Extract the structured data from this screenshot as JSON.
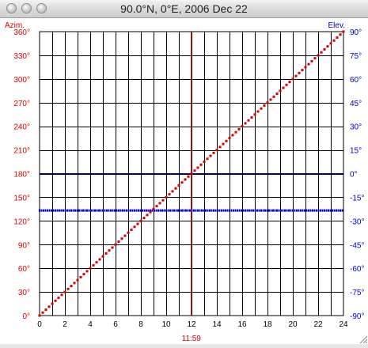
{
  "window": {
    "title": "90.0°N, 0°E, 2006 Dec 22",
    "controls": [
      "close",
      "minimize",
      "zoom"
    ]
  },
  "colors": {
    "azimuth": "#d40000",
    "elevation": "#0000c8",
    "grid": "#000000",
    "background": "#ffffff"
  },
  "chart_data": {
    "type": "scatter",
    "xlabel": "",
    "ylabel_left": "Azim.",
    "ylabel_right": "Elev.",
    "x_ticks": [
      "0",
      "2",
      "4",
      "6",
      "8",
      "10",
      "12",
      "14",
      "16",
      "18",
      "20",
      "22",
      "24"
    ],
    "y_left_ticks": [
      "0°",
      "30°",
      "60°",
      "90°",
      "120°",
      "150°",
      "180°",
      "210°",
      "240°",
      "270°",
      "300°",
      "330°",
      "360°"
    ],
    "y_right_ticks": [
      "-90°",
      "-75°",
      "-60°",
      "-45°",
      "-30°",
      "-15°",
      "0°",
      "15°",
      "30°",
      "45°",
      "60°",
      "75°",
      "90°"
    ],
    "xlim": [
      0,
      24
    ],
    "ylim_left": [
      0,
      360
    ],
    "ylim_right": [
      -90,
      90
    ],
    "grid": true,
    "marker_time": {
      "hour": 11.98,
      "label": "11:59"
    },
    "elevation_zero_line": 0,
    "series": [
      {
        "name": "Azim.",
        "axis": "left",
        "x": [
          0,
          0.5,
          1,
          1.5,
          2,
          2.5,
          3,
          3.5,
          4,
          4.5,
          5,
          5.5,
          6,
          6.5,
          7,
          7.5,
          8,
          8.5,
          9,
          9.5,
          10,
          10.5,
          11,
          11.5,
          12,
          12.5,
          13,
          13.5,
          14,
          14.5,
          15,
          15.5,
          16,
          16.5,
          17,
          17.5,
          18,
          18.5,
          19,
          19.5,
          20,
          20.5,
          21,
          21.5,
          22,
          22.5,
          23,
          23.5,
          24
        ],
        "values": [
          0,
          7.5,
          15,
          22.5,
          30,
          37.5,
          45,
          52.5,
          60,
          67.5,
          75,
          82.5,
          90,
          97.5,
          105,
          112.5,
          120,
          127.5,
          135,
          142.5,
          150,
          157.5,
          165,
          172.5,
          180,
          187.5,
          195,
          202.5,
          210,
          217.5,
          225,
          232.5,
          240,
          247.5,
          255,
          262.5,
          270,
          277.5,
          285,
          292.5,
          300,
          307.5,
          315,
          322.5,
          330,
          337.5,
          345,
          352.5,
          360
        ]
      },
      {
        "name": "Elev.",
        "axis": "right",
        "x": [
          0,
          24
        ],
        "values": [
          -23.4,
          -23.4
        ]
      }
    ]
  }
}
